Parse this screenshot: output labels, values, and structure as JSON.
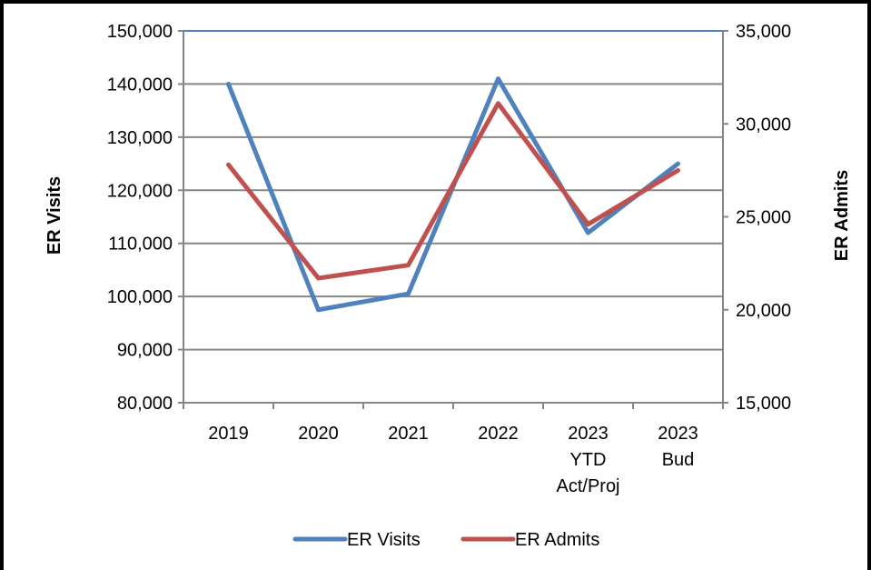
{
  "chart_data": {
    "type": "line",
    "categories": [
      "2019",
      "2020",
      "2021",
      "2022",
      "2023 YTD Act/Proj",
      "2023 Bud"
    ],
    "category_lines": [
      [
        "2019"
      ],
      [
        "2020"
      ],
      [
        "2021"
      ],
      [
        "2022"
      ],
      [
        "2023",
        "YTD",
        "Act/Proj"
      ],
      [
        "2023",
        "Bud"
      ]
    ],
    "y_left": {
      "label": "ER Visits",
      "lim": [
        80000,
        150000
      ],
      "ticks": [
        "80,000",
        "90,000",
        "100,000",
        "110,000",
        "120,000",
        "130,000",
        "140,000",
        "150,000"
      ],
      "tick_values": [
        80000,
        90000,
        100000,
        110000,
        120000,
        130000,
        140000,
        150000
      ]
    },
    "y_right": {
      "label": "ER Admits",
      "lim": [
        15000,
        35000
      ],
      "ticks": [
        "15,000",
        "20,000",
        "25,000",
        "30,000",
        "35,000"
      ],
      "tick_values": [
        15000,
        20000,
        25000,
        30000,
        35000
      ]
    },
    "series": [
      {
        "name": "ER Visits",
        "axis": "left",
        "color": "#4f81bd",
        "values": [
          140000,
          97500,
          100500,
          141000,
          112000,
          125000
        ]
      },
      {
        "name": "ER Admits",
        "axis": "right",
        "color": "#c0504d",
        "values": [
          27800,
          21700,
          22400,
          31100,
          24600,
          27500
        ]
      }
    ],
    "grid": true,
    "legend_position": "bottom"
  }
}
